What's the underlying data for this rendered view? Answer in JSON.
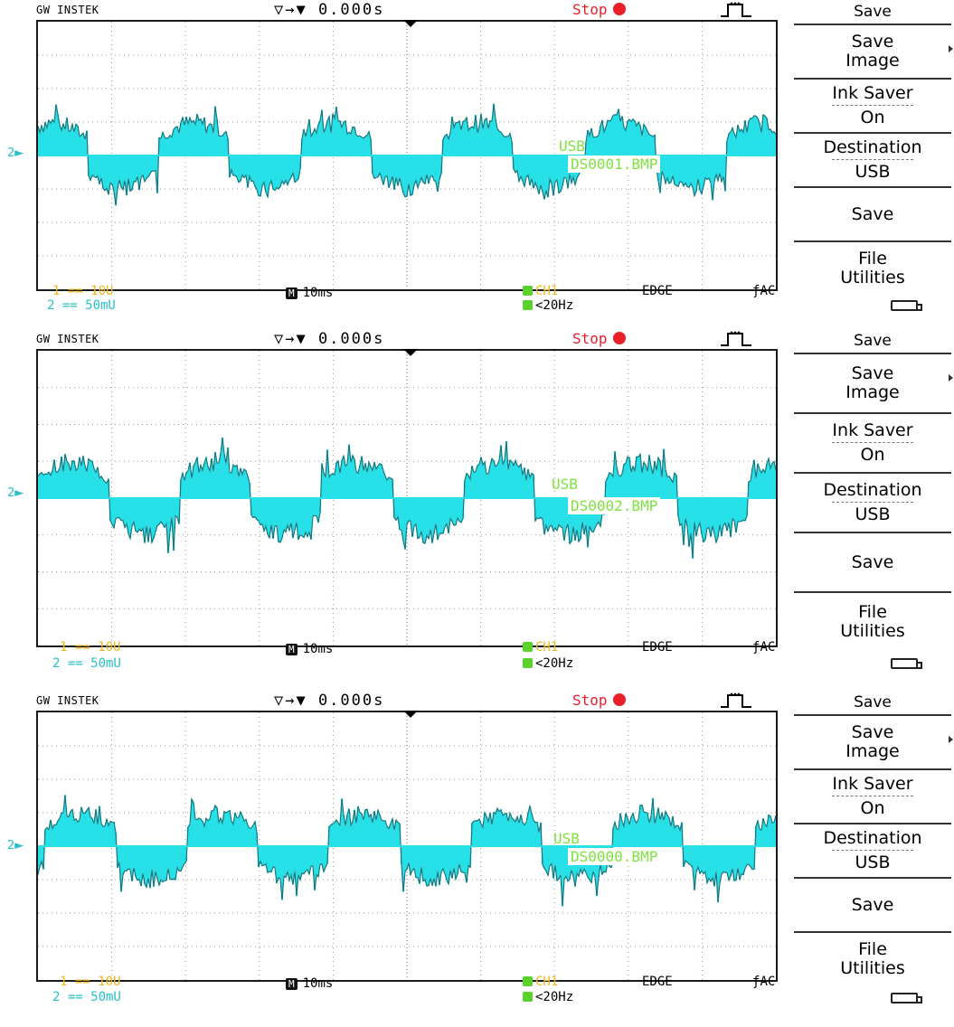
{
  "screens": [
    {
      "brand": "GW INSTEK",
      "trigger_readout": "▽→▼ 0.000s",
      "status": "Stop",
      "overlay_storage": "USB",
      "overlay_file": "DS0001.BMP",
      "ch_marker": "2",
      "footer": {
        "ch1_scale": "1 == 10U",
        "ch2_scale": "2 == 50mU",
        "timebase": "10ms",
        "trig_source": "CH1",
        "trig_type": "EDGE",
        "trig_slope": "AC",
        "trig_filter": "<20Hz"
      }
    },
    {
      "brand": "GW INSTEK",
      "trigger_readout": "▽→▼ 0.000s",
      "status": "Stop",
      "overlay_storage": "USB",
      "overlay_file": "DS0002.BMP",
      "ch_marker": "2",
      "footer": {
        "ch1_scale": "1 == 10U",
        "ch2_scale": "2 == 50mU",
        "timebase": "10ms",
        "trig_source": "CH1",
        "trig_type": "EDGE",
        "trig_slope": "AC",
        "trig_filter": "<20Hz"
      }
    },
    {
      "brand": "GW INSTEK",
      "trigger_readout": "▽→▼ 0.000s",
      "status": "Stop",
      "overlay_storage": "USB",
      "overlay_file": "DS0000.BMP",
      "ch_marker": "2",
      "footer": {
        "ch1_scale": "1 == 10U",
        "ch2_scale": "2 == 50mU",
        "timebase": "10ms",
        "trig_source": "CH1",
        "trig_type": "EDGE",
        "trig_slope": "AC",
        "trig_filter": "<20Hz"
      }
    }
  ],
  "menu": {
    "title": "Save",
    "save_image": [
      "Save",
      "Image"
    ],
    "ink_saver": [
      "Ink Saver",
      "On"
    ],
    "destination": [
      "Destination",
      "USB"
    ],
    "save": "Save",
    "file_utilities": [
      "File",
      "Utilities"
    ]
  },
  "colors": {
    "trace": "#27e0e8",
    "trace_dark": "#16777e",
    "stop": "#e8202a",
    "ch1": "#f0b81c",
    "ch2": "#27c0c8",
    "overlay": "#7ee23f"
  }
}
